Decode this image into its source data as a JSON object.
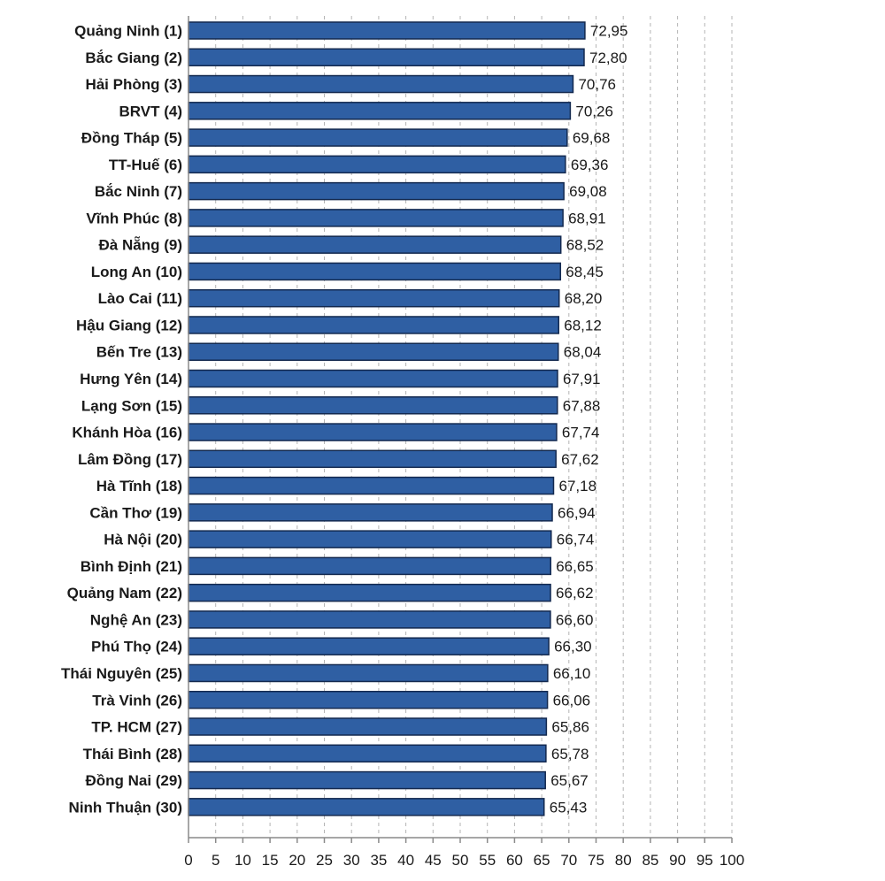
{
  "chart_data": {
    "type": "bar",
    "orientation": "horizontal",
    "categories": [
      "Quảng Ninh (1)",
      "Bắc Giang (2)",
      "Hải Phòng (3)",
      "BRVT (4)",
      "Đồng Tháp (5)",
      "TT-Huế (6)",
      "Bắc Ninh (7)",
      "Vĩnh Phúc (8)",
      "Đà Nẵng (9)",
      "Long An (10)",
      "Lào Cai (11)",
      "Hậu Giang (12)",
      "Bến Tre (13)",
      "Hưng Yên (14)",
      "Lạng Sơn (15)",
      "Khánh Hòa (16)",
      "Lâm Đồng (17)",
      "Hà Tĩnh (18)",
      "Cần Thơ (19)",
      "Hà Nội (20)",
      "Bình Định (21)",
      "Quảng Nam (22)",
      "Nghệ An (23)",
      "Phú Thọ (24)",
      "Thái Nguyên (25)",
      "Trà Vinh (26)",
      "TP. HCM (27)",
      "Thái Bình (28)",
      "Đồng Nai (29)",
      "Ninh Thuận (30)"
    ],
    "values": [
      72.95,
      72.8,
      70.76,
      70.26,
      69.68,
      69.36,
      69.08,
      68.91,
      68.52,
      68.45,
      68.2,
      68.12,
      68.04,
      67.91,
      67.88,
      67.74,
      67.62,
      67.18,
      66.94,
      66.74,
      66.65,
      66.62,
      66.6,
      66.3,
      66.1,
      66.06,
      65.86,
      65.78,
      65.67,
      65.43
    ],
    "value_labels": [
      "72,95",
      "72,80",
      "70,76",
      "70,26",
      "69,68",
      "69,36",
      "69,08",
      "68,91",
      "68,52",
      "68,45",
      "68,20",
      "68,12",
      "68,04",
      "67,91",
      "67,88",
      "67,74",
      "67,62",
      "67,18",
      "66,94",
      "66,74",
      "66,65",
      "66,62",
      "66,60",
      "66,30",
      "66,10",
      "66,06",
      "65,86",
      "65,78",
      "65,67",
      "65,43"
    ],
    "xticks": [
      0,
      5,
      10,
      15,
      20,
      25,
      30,
      35,
      40,
      45,
      50,
      55,
      60,
      65,
      70,
      75,
      80,
      85,
      90,
      95,
      100
    ],
    "xlim": [
      0,
      100
    ],
    "title": "",
    "xlabel": "",
    "ylabel": "",
    "grid": true,
    "colors": {
      "bar": "#2f5fa3",
      "bar_edge": "#13294f"
    }
  }
}
